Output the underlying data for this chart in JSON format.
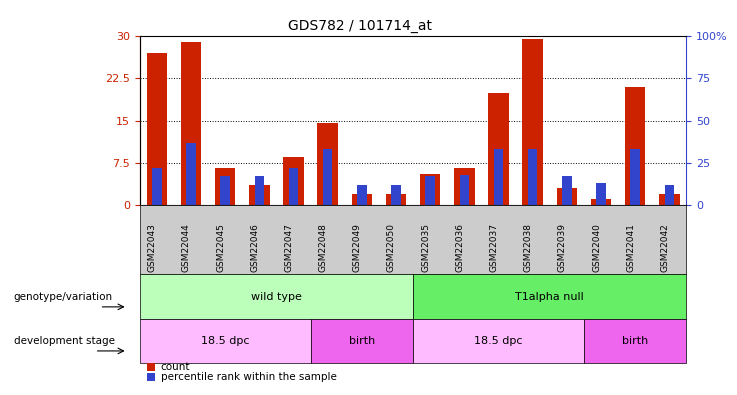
{
  "title": "GDS782 / 101714_at",
  "samples": [
    "GSM22043",
    "GSM22044",
    "GSM22045",
    "GSM22046",
    "GSM22047",
    "GSM22048",
    "GSM22049",
    "GSM22050",
    "GSM22035",
    "GSM22036",
    "GSM22037",
    "GSM22038",
    "GSM22039",
    "GSM22040",
    "GSM22041",
    "GSM22042"
  ],
  "count": [
    27.0,
    29.0,
    6.5,
    3.5,
    8.5,
    14.5,
    2.0,
    2.0,
    5.5,
    6.5,
    20.0,
    29.5,
    3.0,
    1.0,
    21.0,
    2.0
  ],
  "percentile": [
    22.0,
    37.0,
    17.0,
    17.0,
    22.0,
    33.0,
    12.0,
    12.0,
    17.0,
    18.0,
    33.0,
    33.0,
    17.0,
    13.0,
    33.0,
    12.0
  ],
  "ylim_left": [
    0,
    30
  ],
  "ylim_right": [
    0,
    100
  ],
  "yticks_left": [
    0,
    7.5,
    15,
    22.5,
    30
  ],
  "ytick_labels_left": [
    "0",
    "7.5",
    "15",
    "22.5",
    "30"
  ],
  "ytick_labels_right": [
    "0",
    "25",
    "50",
    "75",
    "100%"
  ],
  "bar_color_red": "#cc2200",
  "bar_color_blue": "#3344cc",
  "title_fontsize": 10,
  "genotype_labels": [
    "wild type",
    "T1alpha null"
  ],
  "genotype_color_wt": "#bbffbb",
  "genotype_color_t1": "#66ee66",
  "stage_labels": [
    "18.5 dpc",
    "birth",
    "18.5 dpc",
    "birth"
  ],
  "stage_color_light": "#ffbbff",
  "stage_color_dark": "#ee66ee",
  "xtick_bg": "#cccccc",
  "row_label_genotype": "genotype/variation",
  "row_label_stage": "development stage",
  "legend_count": "count",
  "legend_percentile": "percentile rank within the sample",
  "n_samples": 16,
  "n_wt": 8,
  "n_18dpc_wt": 5,
  "n_birth_wt": 3,
  "n_18dpc_t1": 5,
  "n_birth_t1": 3
}
